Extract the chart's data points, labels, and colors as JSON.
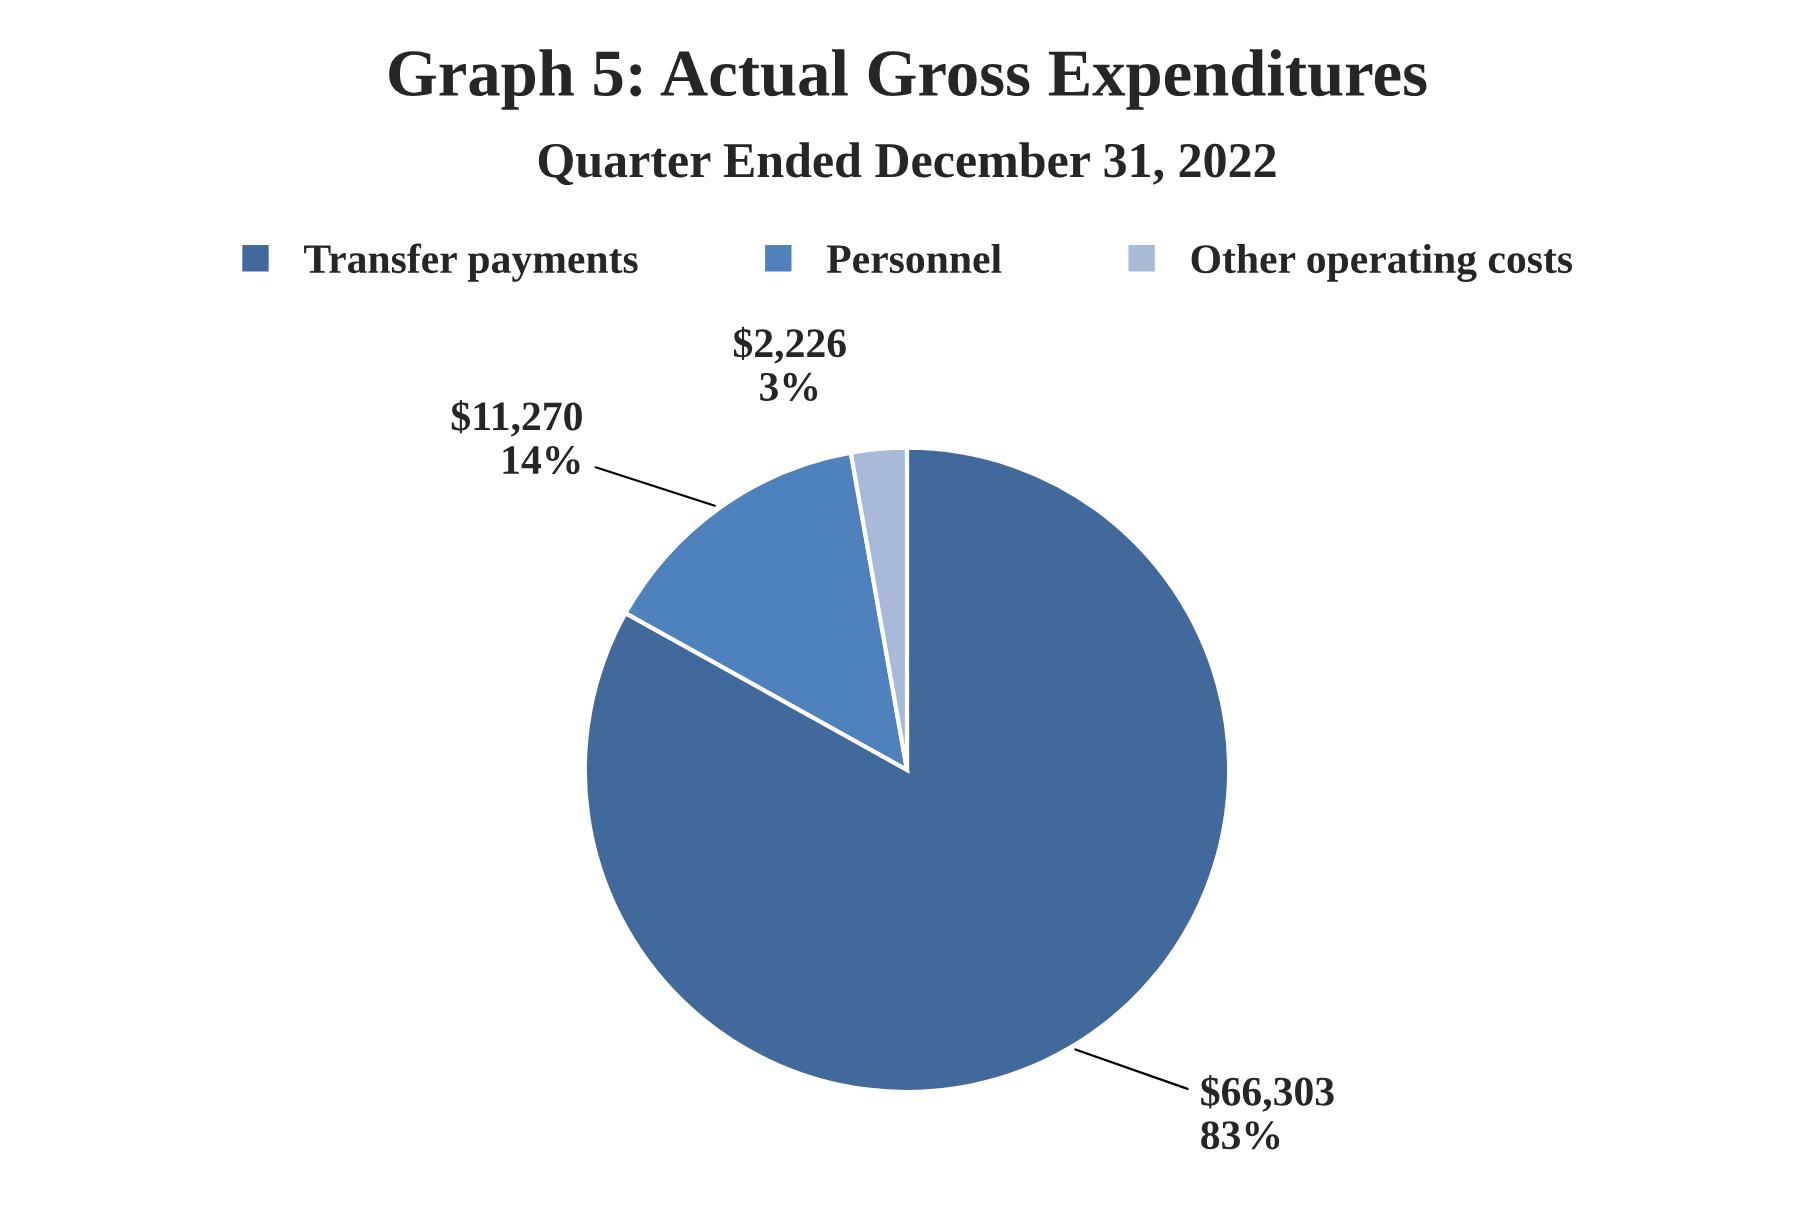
{
  "chart_data": {
    "type": "pie",
    "title": "Graph 5: Actual Gross Expenditures",
    "subtitle": "Quarter Ended December 31, 2022",
    "categories": [
      "Transfer payments",
      "Personnel",
      "Other operating costs"
    ],
    "values": [
      66303,
      11270,
      2226
    ],
    "colors": [
      "#41699c",
      "#4f81bd",
      "#a9bad9"
    ],
    "value_labels": [
      "$66,303\n83%",
      "$11,270\n14%",
      "$2,226\n3%"
    ],
    "legend": "top"
  }
}
